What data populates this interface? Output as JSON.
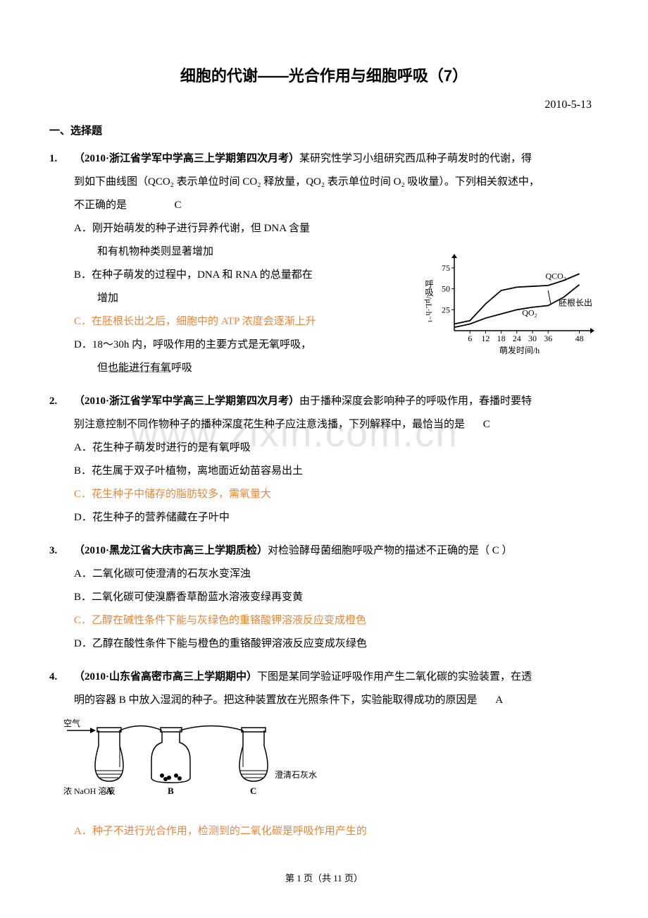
{
  "title": "细胞的代谢——光合作用与细胞呼吸（7）",
  "date": "2010-5-13",
  "section_heading": "一、选择题",
  "watermark_text": "www.zixin.com.cn",
  "footer": "第 1 页（共 11 页）",
  "chart": {
    "type": "line",
    "y_label": "呼吸/μL·h⁻¹",
    "x_label": "萌发时间/h",
    "y_ticks": [
      "25",
      "50",
      "75"
    ],
    "x_ticks": [
      "6",
      "12",
      "18",
      "24",
      "30",
      "36",
      "48"
    ],
    "series": [
      {
        "name": "QCO₂",
        "label": "QCO₂",
        "points": [
          [
            0,
            8
          ],
          [
            6,
            12
          ],
          [
            12,
            32
          ],
          [
            18,
            48
          ],
          [
            24,
            52
          ],
          [
            30,
            53
          ],
          [
            36,
            54
          ],
          [
            42,
            60
          ],
          [
            48,
            68
          ]
        ]
      },
      {
        "name": "QO₂",
        "label": "QO₂",
        "points": [
          [
            0,
            4
          ],
          [
            6,
            8
          ],
          [
            12,
            15
          ],
          [
            18,
            20
          ],
          [
            24,
            25
          ],
          [
            30,
            28
          ],
          [
            36,
            30
          ],
          [
            42,
            40
          ],
          [
            48,
            55
          ]
        ]
      }
    ],
    "annotation": "胚根长出",
    "annotation_line_x": 36,
    "ylim": [
      0,
      80
    ],
    "xlim": [
      0,
      50
    ],
    "stroke_color": "#000000",
    "background_color": "#ffffff",
    "text_color": "#000000",
    "font_size": 12
  },
  "apparatus": {
    "air_label": "空气",
    "flask_a_label": "浓 NaOH 溶液",
    "a": "A",
    "b": "B",
    "c": "C",
    "c_label": "澄清石灰水"
  },
  "questions": [
    {
      "num": "1.",
      "source": "（2010·浙江省学军中学高三上学期第四次月考）",
      "stem_part1": "某研究性学习小组研究西瓜种子萌发时的代谢，得",
      "stem_line2": "到如下曲线图（QCO₂ 表示单位时间 CO₂ 释放量，QO₂ 表示单位时间 O₂ 吸收量）。下列相关叙述中，",
      "stem_line3_a": "不正确的是",
      "stem_line3_ans": "C",
      "options": [
        {
          "letter": "A．",
          "text": "刚开始萌发的种子进行异养代谢，但 DNA 含量",
          "text2": "和有机物种类则显著增加",
          "highlight": false
        },
        {
          "letter": "B．",
          "text": "在种子萌发的过程中，DNA 和 RNA 的总量都在",
          "text2": "增加",
          "highlight": false
        },
        {
          "letter": "C．",
          "text": "在胚根长出之后，细胞中的 ATP 浓度会逐渐上升",
          "highlight": true
        },
        {
          "letter": "D．",
          "text": "18～30h 内，呼吸作用的主要方式是无氧呼吸，",
          "text2": "但也能进行有氧呼吸",
          "highlight": false
        }
      ]
    },
    {
      "num": "2.",
      "source": "（2010·浙江省学军中学高三上学期第四次月考）",
      "stem_part1": "由于播种深度会影响种子的呼吸作用，春播时要特",
      "stem_line2_a": "别注意控制不同作物种子的播种深度花生种子应注意浅播，下列解释中，最恰当的是",
      "stem_line2_ans": "C",
      "options": [
        {
          "letter": "A．",
          "text": "花生种子萌发时进行的是有氧呼吸",
          "highlight": false
        },
        {
          "letter": "B．",
          "text": "花生属于双子叶植物，离地面近幼苗容易出土",
          "highlight": false
        },
        {
          "letter": "C．",
          "text": "花生种子中储存的脂肪较多，需氧量大",
          "highlight": true
        },
        {
          "letter": "D．",
          "text": "花生种子的营养储藏在子叶中",
          "highlight": false
        }
      ]
    },
    {
      "num": "3.",
      "source": "（2010·黑龙江省大庆市高三上学期质检）",
      "stem_part1": "对检验酵母菌细胞呼吸产物的描述不正确的是（  C  ）",
      "options": [
        {
          "letter": "A．",
          "text": "二氧化碳可使澄清的石灰水变浑浊",
          "highlight": false
        },
        {
          "letter": "B．",
          "text": "二氧化碳可使溴麝香草酚蓝水溶液变绿再变黄",
          "highlight": false
        },
        {
          "letter": "C．",
          "text": "乙醇在碱性条件下能与灰绿色的重铬酸钾溶液反应变成橙色",
          "highlight": true
        },
        {
          "letter": "D．",
          "text": "乙醇在酸性条件下能与橙色的重铬酸钾溶液反应变成灰绿色",
          "highlight": false
        }
      ]
    },
    {
      "num": "4.",
      "source": "（2010·山东省高密市高三上学期期中）",
      "stem_part1": "下图是某同学验证呼吸作用产生二氧化碳的实验装置，在透",
      "stem_line2_a": "明的容器 B 中放入湿润的种子。把这种装置放在光照条件下，实验能取得成功的原因是",
      "stem_line2_ans": "A",
      "options": [
        {
          "letter": "A．",
          "text": "种子不进行光合作用，检测到的二氧化碳是呼吸作用产生的",
          "highlight": true
        }
      ]
    }
  ]
}
